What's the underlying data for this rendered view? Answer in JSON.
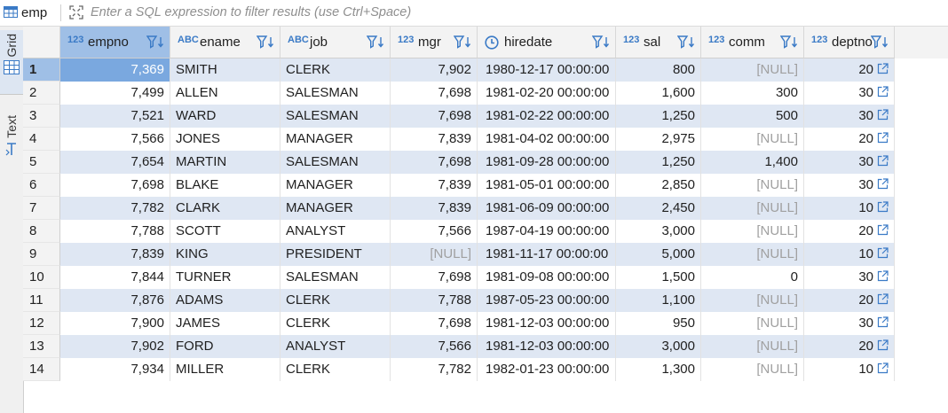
{
  "filter_bar": {
    "table_name": "emp",
    "placeholder": "Enter a SQL expression to filter results (use Ctrl+Space)"
  },
  "side_tabs": {
    "grid": "Grid",
    "text": "Text"
  },
  "columns": [
    {
      "type": "123",
      "name": "empno"
    },
    {
      "type": "ABC",
      "name": "ename"
    },
    {
      "type": "ABC",
      "name": "job"
    },
    {
      "type": "123",
      "name": "mgr"
    },
    {
      "type": "clock",
      "name": "hiredate"
    },
    {
      "type": "123",
      "name": "sal"
    },
    {
      "type": "123",
      "name": "comm"
    },
    {
      "type": "123",
      "name": "deptno"
    }
  ],
  "rows": [
    {
      "n": "1",
      "empno": "7,369",
      "ename": "SMITH",
      "job": "CLERK",
      "mgr": "7,902",
      "hiredate": "1980-12-17 00:00:00",
      "sal": "800",
      "comm": "[NULL]",
      "deptno": "20"
    },
    {
      "n": "2",
      "empno": "7,499",
      "ename": "ALLEN",
      "job": "SALESMAN",
      "mgr": "7,698",
      "hiredate": "1981-02-20 00:00:00",
      "sal": "1,600",
      "comm": "300",
      "deptno": "30"
    },
    {
      "n": "3",
      "empno": "7,521",
      "ename": "WARD",
      "job": "SALESMAN",
      "mgr": "7,698",
      "hiredate": "1981-02-22 00:00:00",
      "sal": "1,250",
      "comm": "500",
      "deptno": "30"
    },
    {
      "n": "4",
      "empno": "7,566",
      "ename": "JONES",
      "job": "MANAGER",
      "mgr": "7,839",
      "hiredate": "1981-04-02 00:00:00",
      "sal": "2,975",
      "comm": "[NULL]",
      "deptno": "20"
    },
    {
      "n": "5",
      "empno": "7,654",
      "ename": "MARTIN",
      "job": "SALESMAN",
      "mgr": "7,698",
      "hiredate": "1981-09-28 00:00:00",
      "sal": "1,250",
      "comm": "1,400",
      "deptno": "30"
    },
    {
      "n": "6",
      "empno": "7,698",
      "ename": "BLAKE",
      "job": "MANAGER",
      "mgr": "7,839",
      "hiredate": "1981-05-01 00:00:00",
      "sal": "2,850",
      "comm": "[NULL]",
      "deptno": "30"
    },
    {
      "n": "7",
      "empno": "7,782",
      "ename": "CLARK",
      "job": "MANAGER",
      "mgr": "7,839",
      "hiredate": "1981-06-09 00:00:00",
      "sal": "2,450",
      "comm": "[NULL]",
      "deptno": "10"
    },
    {
      "n": "8",
      "empno": "7,788",
      "ename": "SCOTT",
      "job": "ANALYST",
      "mgr": "7,566",
      "hiredate": "1987-04-19 00:00:00",
      "sal": "3,000",
      "comm": "[NULL]",
      "deptno": "20"
    },
    {
      "n": "9",
      "empno": "7,839",
      "ename": "KING",
      "job": "PRESIDENT",
      "mgr": "[NULL]",
      "hiredate": "1981-11-17 00:00:00",
      "sal": "5,000",
      "comm": "[NULL]",
      "deptno": "10"
    },
    {
      "n": "10",
      "empno": "7,844",
      "ename": "TURNER",
      "job": "SALESMAN",
      "mgr": "7,698",
      "hiredate": "1981-09-08 00:00:00",
      "sal": "1,500",
      "comm": "0",
      "deptno": "30"
    },
    {
      "n": "11",
      "empno": "7,876",
      "ename": "ADAMS",
      "job": "CLERK",
      "mgr": "7,788",
      "hiredate": "1987-05-23 00:00:00",
      "sal": "1,100",
      "comm": "[NULL]",
      "deptno": "20"
    },
    {
      "n": "12",
      "empno": "7,900",
      "ename": "JAMES",
      "job": "CLERK",
      "mgr": "7,698",
      "hiredate": "1981-12-03 00:00:00",
      "sal": "950",
      "comm": "[NULL]",
      "deptno": "30"
    },
    {
      "n": "13",
      "empno": "7,902",
      "ename": "FORD",
      "job": "ANALYST",
      "mgr": "7,566",
      "hiredate": "1981-12-03 00:00:00",
      "sal": "3,000",
      "comm": "[NULL]",
      "deptno": "20"
    },
    {
      "n": "14",
      "empno": "7,934",
      "ename": "MILLER",
      "job": "CLERK",
      "mgr": "7,782",
      "hiredate": "1982-01-23 00:00:00",
      "sal": "1,300",
      "comm": "[NULL]",
      "deptno": "10"
    }
  ],
  "colors": {
    "accent": "#3a7ac6",
    "stripe": "#dfe7f3",
    "selected": "#7aa8df",
    "null_text": "#a0a0a0"
  }
}
